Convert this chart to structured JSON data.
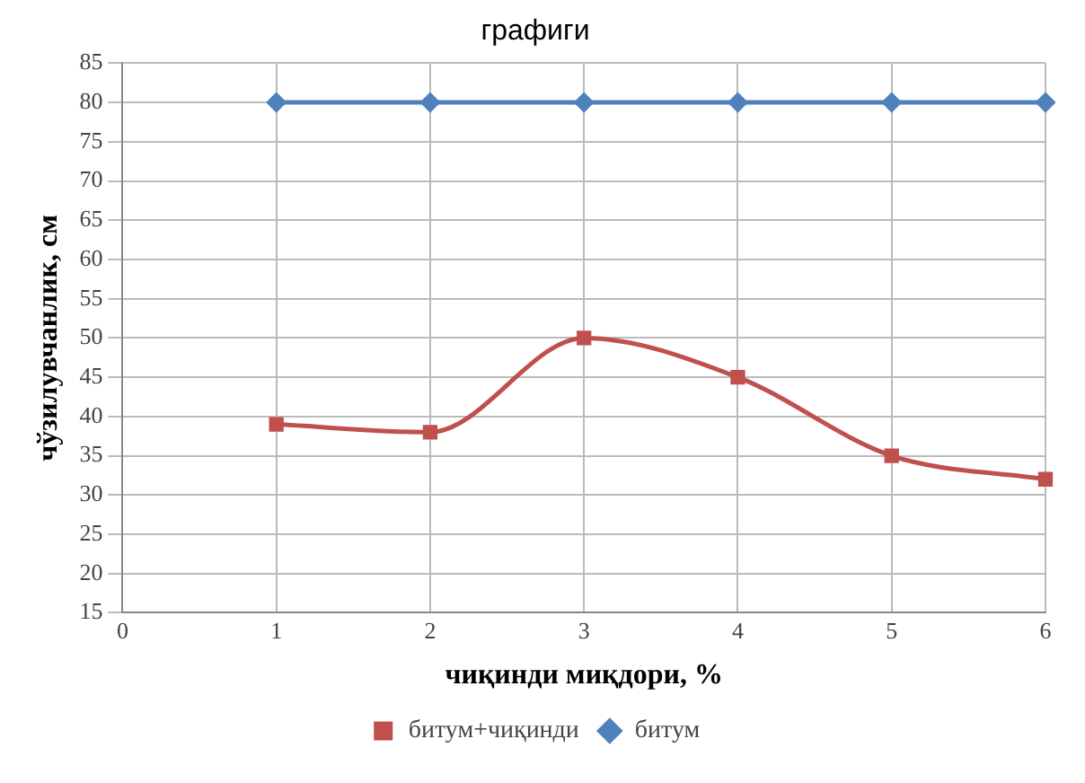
{
  "chart_data": {
    "type": "line",
    "title": "графиги",
    "xlabel": "чиқинди миқдори, %",
    "ylabel": "чўзилувчанлик, см",
    "x": [
      1,
      2,
      3,
      4,
      5,
      6
    ],
    "series": [
      {
        "name": "битум+чиқинди",
        "color": "#c0504d",
        "marker": "square",
        "values": [
          39,
          38,
          50,
          45,
          35,
          32
        ]
      },
      {
        "name": "битум",
        "color": "#4f81bd",
        "marker": "diamond",
        "values": [
          80,
          80,
          80,
          80,
          80,
          80
        ]
      }
    ],
    "xlim": [
      0,
      6
    ],
    "xticks": [
      0,
      1,
      2,
      3,
      4,
      5,
      6
    ],
    "ylim": [
      15,
      85
    ],
    "yticks": [
      15,
      20,
      25,
      30,
      35,
      40,
      45,
      50,
      55,
      60,
      65,
      70,
      75,
      80,
      85
    ],
    "grid": true,
    "legend": "bottom"
  }
}
